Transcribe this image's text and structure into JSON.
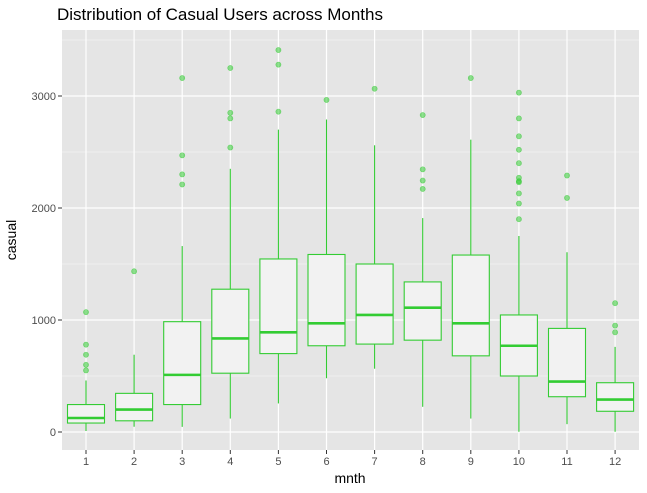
{
  "chart_data": {
    "type": "boxplot",
    "title": "Distribution of Casual Users across Months",
    "xlabel": "mnth",
    "ylabel": "casual",
    "categories": [
      "1",
      "2",
      "3",
      "4",
      "5",
      "6",
      "7",
      "8",
      "9",
      "10",
      "11",
      "12"
    ],
    "y_ticks": [
      0,
      1000,
      2000,
      3000
    ],
    "y_tick_labels": [
      "0",
      "1000",
      "2000",
      "3000"
    ],
    "ylim": [
      -150,
      3550
    ],
    "grid": true,
    "colors": {
      "panel_bg": "#e5e5e5",
      "grid": "#ffffff",
      "box_stroke": "#33cc33",
      "box_fill": "#f2f2f2",
      "outlier": "#33cc33"
    },
    "boxes": [
      {
        "category": "1",
        "lower": 9,
        "q1": 80,
        "median": 125,
        "q3": 245,
        "upper": 460,
        "outliers": [
          550,
          600,
          690,
          780,
          1070
        ]
      },
      {
        "category": "2",
        "lower": 47,
        "q1": 100,
        "median": 200,
        "q3": 345,
        "upper": 690,
        "outliers": [
          1435
        ]
      },
      {
        "category": "3",
        "lower": 46,
        "q1": 245,
        "median": 510,
        "q3": 985,
        "upper": 1660,
        "outliers": [
          2210,
          2300,
          2470,
          3160
        ]
      },
      {
        "category": "4",
        "lower": 120,
        "q1": 525,
        "median": 835,
        "q3": 1275,
        "upper": 2350,
        "outliers": [
          2540,
          2800,
          2850,
          3250
        ]
      },
      {
        "category": "5",
        "lower": 255,
        "q1": 700,
        "median": 890,
        "q3": 1545,
        "upper": 2700,
        "outliers": [
          2860,
          3280,
          3410
        ]
      },
      {
        "category": "6",
        "lower": 480,
        "q1": 770,
        "median": 970,
        "q3": 1585,
        "upper": 2790,
        "outliers": [
          2965
        ]
      },
      {
        "category": "7",
        "lower": 565,
        "q1": 785,
        "median": 1045,
        "q3": 1500,
        "upper": 2560,
        "outliers": [
          3065
        ]
      },
      {
        "category": "8",
        "lower": 225,
        "q1": 820,
        "median": 1110,
        "q3": 1340,
        "upper": 1910,
        "outliers": [
          2170,
          2245,
          2345,
          2830
        ]
      },
      {
        "category": "9",
        "lower": 120,
        "q1": 680,
        "median": 970,
        "q3": 1580,
        "upper": 2610,
        "outliers": [
          3160
        ]
      },
      {
        "category": "10",
        "lower": 2,
        "q1": 500,
        "median": 770,
        "q3": 1045,
        "upper": 1750,
        "outliers": [
          1900,
          2040,
          2130,
          2230,
          2240,
          2270,
          2400,
          2520,
          2640,
          2800,
          3030
        ]
      },
      {
        "category": "11",
        "lower": 70,
        "q1": 315,
        "median": 450,
        "q3": 925,
        "upper": 1605,
        "outliers": [
          2090,
          2290
        ]
      },
      {
        "category": "12",
        "lower": 2,
        "q1": 185,
        "median": 290,
        "q3": 440,
        "upper": 760,
        "outliers": [
          890,
          950,
          1150
        ]
      }
    ]
  }
}
